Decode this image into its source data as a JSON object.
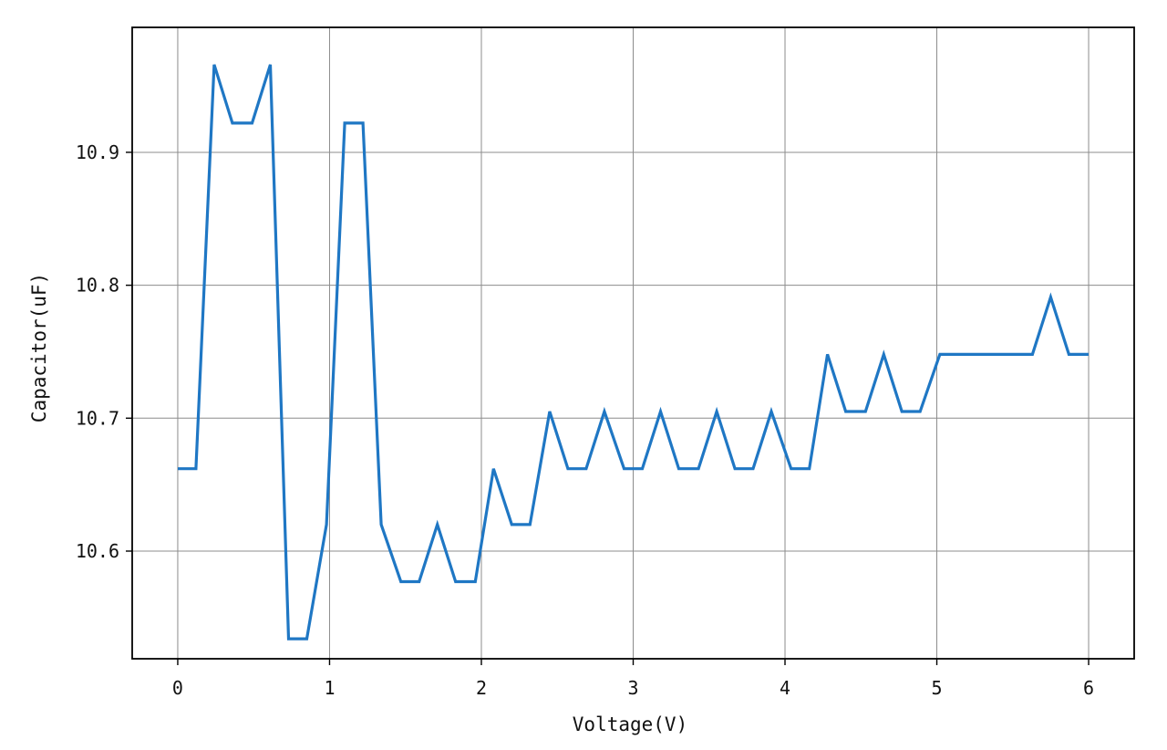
{
  "chart_data": {
    "type": "line",
    "title": "",
    "xlabel": "Voltage(V)",
    "ylabel": "Capacitor(uF)",
    "xlim": [
      -0.3,
      6.3
    ],
    "ylim": [
      10.519,
      10.994
    ],
    "xticks": [
      0,
      1,
      2,
      3,
      4,
      5,
      6
    ],
    "yticks": [
      10.6,
      10.7,
      10.8,
      10.9
    ],
    "xtick_labels": [
      "0",
      "1",
      "2",
      "3",
      "4",
      "5",
      "6"
    ],
    "ytick_labels": [
      "10.6",
      "10.7",
      "10.8",
      "10.9"
    ],
    "grid": true,
    "legend": "none",
    "series": [
      {
        "color": "#1f77c4",
        "x": [
          0,
          0.12,
          0.24,
          0.36,
          0.49,
          0.61,
          0.73,
          0.85,
          0.98,
          1.1,
          1.22,
          1.34,
          1.47,
          1.59,
          1.71,
          1.83,
          1.96,
          2.08,
          2.2,
          2.32,
          2.45,
          2.57,
          2.69,
          2.81,
          2.94,
          3.06,
          3.18,
          3.3,
          3.43,
          3.55,
          3.67,
          3.79,
          3.91,
          4.04,
          4.16,
          4.28,
          4.4,
          4.53,
          4.65,
          4.77,
          4.89,
          5.02,
          5.14,
          5.26,
          5.38,
          5.51,
          5.63,
          5.75,
          5.87,
          6.0
        ],
        "y": [
          10.662,
          10.662,
          10.966,
          10.922,
          10.922,
          10.966,
          10.534,
          10.534,
          10.62,
          10.922,
          10.922,
          10.62,
          10.577,
          10.577,
          10.62,
          10.577,
          10.577,
          10.662,
          10.62,
          10.62,
          10.705,
          10.662,
          10.662,
          10.705,
          10.662,
          10.662,
          10.705,
          10.662,
          10.662,
          10.705,
          10.662,
          10.662,
          10.705,
          10.662,
          10.662,
          10.748,
          10.705,
          10.705,
          10.748,
          10.705,
          10.705,
          10.748,
          10.748,
          10.748,
          10.748,
          10.748,
          10.748,
          10.791,
          10.748,
          10.748
        ]
      }
    ]
  }
}
